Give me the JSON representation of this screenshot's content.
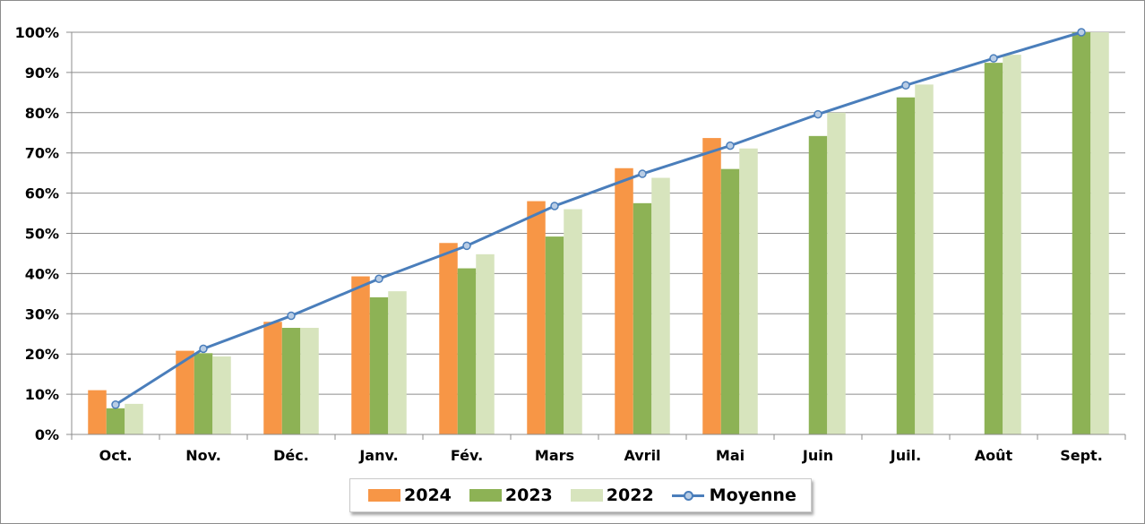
{
  "chart_data": {
    "type": "bar",
    "categories": [
      "Oct.",
      "Nov.",
      "Déc.",
      "Janv.",
      "Fév.",
      "Mars",
      "Avril",
      "Mai",
      "Juin",
      "Juil.",
      "Août",
      "Sept."
    ],
    "series": [
      {
        "name": "2024",
        "type": "bar",
        "color": "#f79646",
        "values": [
          11,
          20.8,
          28,
          39.3,
          47.6,
          58,
          66.2,
          73.7,
          null,
          null,
          null,
          null
        ]
      },
      {
        "name": "2023",
        "type": "bar",
        "color": "#8db255",
        "values": [
          6.5,
          20.2,
          26.5,
          34.1,
          41.3,
          49.2,
          57.5,
          66,
          74.2,
          83.8,
          92.4,
          100
        ]
      },
      {
        "name": "2022",
        "type": "bar",
        "color": "#d7e4bd",
        "values": [
          7.6,
          19.4,
          26.5,
          35.6,
          44.8,
          56,
          63.8,
          71.1,
          80,
          87,
          94.4,
          100
        ]
      },
      {
        "name": "Moyenne",
        "type": "line",
        "color": "#4a7ebb",
        "values": [
          7.4,
          21.3,
          29.5,
          38.7,
          46.9,
          56.8,
          64.8,
          71.8,
          79.6,
          86.8,
          93.5,
          100
        ]
      }
    ],
    "yticks": [
      "0%",
      "10%",
      "20%",
      "30%",
      "40%",
      "50%",
      "60%",
      "70%",
      "80%",
      "90%",
      "100%"
    ],
    "ylim": [
      0,
      100
    ],
    "grid": true,
    "legend": "bottom",
    "title": "",
    "xlabel": "",
    "ylabel": ""
  }
}
